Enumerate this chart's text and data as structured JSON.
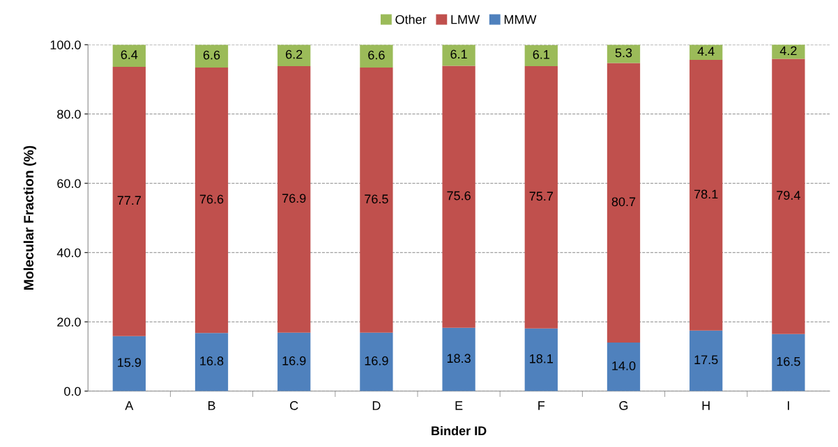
{
  "chart_data": {
    "type": "bar",
    "stacked": true,
    "xlabel": "Binder ID",
    "ylabel": "Molecular Fraction (%)",
    "categories": [
      "A",
      "B",
      "C",
      "D",
      "E",
      "F",
      "G",
      "H",
      "I"
    ],
    "series": [
      {
        "name": "MMW",
        "color": "#4f81bd",
        "values": [
          15.9,
          16.8,
          16.9,
          16.9,
          18.3,
          18.1,
          14.0,
          17.5,
          16.5
        ],
        "value_labels": [
          "15.9",
          "16.8",
          "16.9",
          "16.9",
          "18.3",
          "18.1",
          "14.0",
          "17.5",
          "16.5"
        ]
      },
      {
        "name": "LMW",
        "color": "#c0504d",
        "values": [
          77.7,
          76.6,
          76.9,
          76.5,
          75.6,
          75.7,
          80.7,
          78.1,
          79.4
        ],
        "value_labels": [
          "77.7",
          "76.6",
          "76.9",
          "76.5",
          "75.6",
          "75.7",
          "80.7",
          "78.1",
          "79.4"
        ]
      },
      {
        "name": "Other",
        "color": "#9bbb59",
        "values": [
          6.4,
          6.6,
          6.2,
          6.6,
          6.1,
          6.1,
          5.3,
          4.4,
          4.2
        ],
        "value_labels": [
          "6.4",
          "6.6",
          "6.2",
          "6.6",
          "6.1",
          "6.1",
          "5.3",
          "4.4",
          "4.2"
        ]
      }
    ],
    "ylim": [
      0,
      100
    ],
    "yticks": [
      {
        "value": 0,
        "label": "0.0"
      },
      {
        "value": 20,
        "label": "20.0"
      },
      {
        "value": 40,
        "label": "40.0"
      },
      {
        "value": 60,
        "label": "60.0"
      },
      {
        "value": 80,
        "label": "80.0"
      },
      {
        "value": 100,
        "label": "100.0"
      }
    ],
    "grid": "y",
    "legend": "top"
  }
}
